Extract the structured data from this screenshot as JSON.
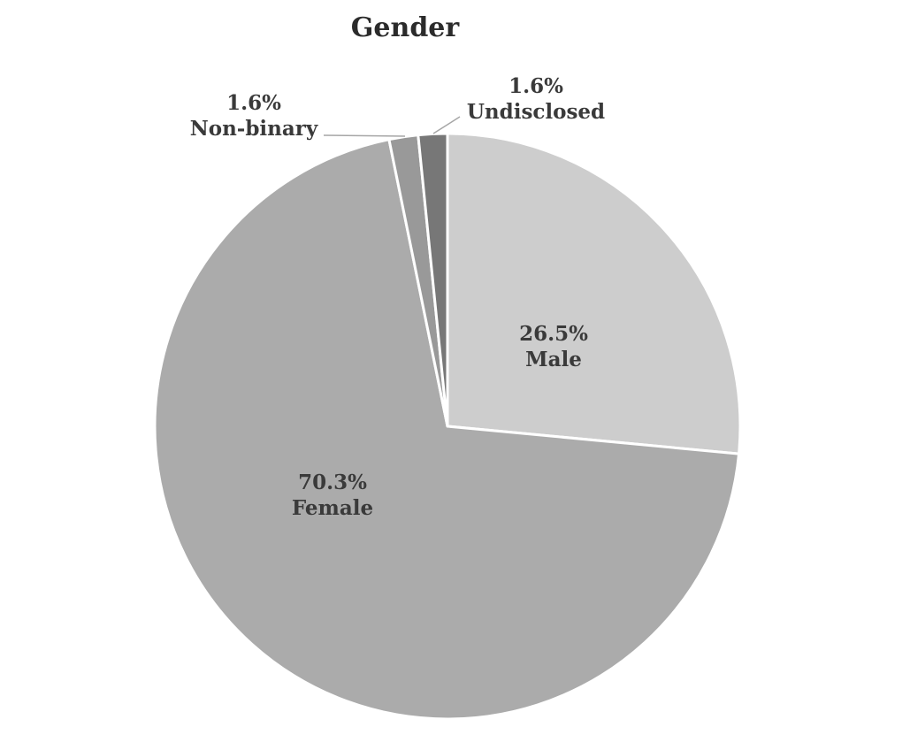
{
  "chart_data": {
    "type": "pie",
    "title": "Gender",
    "slices": [
      {
        "label": "Male",
        "value": 26.5,
        "value_label": "26.5%",
        "color": "#cdcdcd"
      },
      {
        "label": "Female",
        "value": 70.3,
        "value_label": "70.3%",
        "color": "#ababab"
      },
      {
        "label": "Non-binary",
        "value": 1.6,
        "value_label": "1.6%",
        "color": "#999999"
      },
      {
        "label": "Undisclosed",
        "value": 1.6,
        "value_label": "1.6%",
        "color": "#777777"
      }
    ],
    "label_color": "#3a3a3a",
    "legend": "none"
  }
}
